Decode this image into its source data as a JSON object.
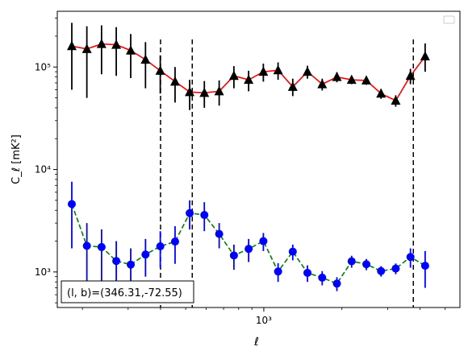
{
  "chart_data": {
    "type": "scatter",
    "title": "",
    "xlabel": "ℓ",
    "ylabel": "C_ℓ [mK²]",
    "xscale": "log",
    "yscale": "log",
    "xlim": [
      160,
      5700
    ],
    "ylim": [
      450,
      350000
    ],
    "xticks": [
      {
        "value": 1000,
        "label": "10³"
      }
    ],
    "yticks": [
      {
        "value": 1000,
        "label": "10³"
      },
      {
        "value": 10000,
        "label": "10⁴"
      },
      {
        "value": 100000,
        "label": "10⁵"
      }
    ],
    "vlines": [
      400,
      530,
      3770
    ],
    "legend": {
      "position": "upper right",
      "entries": []
    },
    "annotation": "(l, b)=(346.31,-72.55)",
    "annotation_position": "lower left",
    "series": [
      {
        "marker": "triangle",
        "marker_color": "#000000",
        "error_color": "#000000",
        "line_color": "#ff0000",
        "line_style": "solid",
        "points": [
          {
            "x": 182,
            "y": 160000,
            "lo": 60000,
            "hi": 270000
          },
          {
            "x": 208,
            "y": 150000,
            "lo": 50000,
            "hi": 250000
          },
          {
            "x": 237,
            "y": 168000,
            "lo": 85000,
            "hi": 255000
          },
          {
            "x": 270,
            "y": 165000,
            "lo": 82000,
            "hi": 245000
          },
          {
            "x": 307,
            "y": 145000,
            "lo": 78000,
            "hi": 210000
          },
          {
            "x": 350,
            "y": 118000,
            "lo": 62000,
            "hi": 175000
          },
          {
            "x": 399,
            "y": 92000,
            "lo": 55000,
            "hi": 130000
          },
          {
            "x": 455,
            "y": 72000,
            "lo": 45000,
            "hi": 100000
          },
          {
            "x": 518,
            "y": 57000,
            "lo": 38000,
            "hi": 75000
          },
          {
            "x": 590,
            "y": 56000,
            "lo": 40000,
            "hi": 73000
          },
          {
            "x": 673,
            "y": 58000,
            "lo": 42000,
            "hi": 74000
          },
          {
            "x": 767,
            "y": 82000,
            "lo": 62000,
            "hi": 102000
          },
          {
            "x": 874,
            "y": 75000,
            "lo": 58000,
            "hi": 92000
          },
          {
            "x": 996,
            "y": 90000,
            "lo": 72000,
            "hi": 108000
          },
          {
            "x": 1135,
            "y": 93000,
            "lo": 75000,
            "hi": 111000
          },
          {
            "x": 1293,
            "y": 64000,
            "lo": 52000,
            "hi": 77000
          },
          {
            "x": 1473,
            "y": 90000,
            "lo": 77000,
            "hi": 103000
          },
          {
            "x": 1679,
            "y": 68000,
            "lo": 59000,
            "hi": 77000
          },
          {
            "x": 1913,
            "y": 80000,
            "lo": 71000,
            "hi": 89000
          },
          {
            "x": 2180,
            "y": 75000,
            "lo": 68000,
            "hi": 82000
          },
          {
            "x": 2484,
            "y": 74000,
            "lo": 67000,
            "hi": 81000
          },
          {
            "x": 2830,
            "y": 55000,
            "lo": 49000,
            "hi": 61000
          },
          {
            "x": 3224,
            "y": 47000,
            "lo": 41000,
            "hi": 53000
          },
          {
            "x": 3674,
            "y": 82000,
            "lo": 68000,
            "hi": 96000
          },
          {
            "x": 4186,
            "y": 127000,
            "lo": 90000,
            "hi": 170000
          }
        ]
      },
      {
        "marker": "circle",
        "marker_color": "#0000ff",
        "error_color": "#0000ff",
        "line_color": "#008000",
        "line_style": "dashed",
        "points": [
          {
            "x": 182,
            "y": 4600,
            "lo": 1700,
            "hi": 7600
          },
          {
            "x": 208,
            "y": 1800,
            "lo": 600,
            "hi": 3000
          },
          {
            "x": 237,
            "y": 1750,
            "lo": 700,
            "hi": 2600
          },
          {
            "x": 270,
            "y": 1280,
            "lo": 600,
            "hi": 2000
          },
          {
            "x": 307,
            "y": 1180,
            "lo": 700,
            "hi": 1700
          },
          {
            "x": 350,
            "y": 1480,
            "lo": 900,
            "hi": 2100
          },
          {
            "x": 399,
            "y": 1780,
            "lo": 1100,
            "hi": 2500
          },
          {
            "x": 455,
            "y": 1980,
            "lo": 1200,
            "hi": 2800
          },
          {
            "x": 518,
            "y": 3750,
            "lo": 2600,
            "hi": 5000
          },
          {
            "x": 590,
            "y": 3600,
            "lo": 2500,
            "hi": 4800
          },
          {
            "x": 673,
            "y": 2350,
            "lo": 1700,
            "hi": 3000
          },
          {
            "x": 767,
            "y": 1450,
            "lo": 1050,
            "hi": 1850
          },
          {
            "x": 874,
            "y": 1680,
            "lo": 1250,
            "hi": 2100
          },
          {
            "x": 996,
            "y": 2000,
            "lo": 1600,
            "hi": 2400
          },
          {
            "x": 1135,
            "y": 1010,
            "lo": 800,
            "hi": 1220
          },
          {
            "x": 1293,
            "y": 1580,
            "lo": 1300,
            "hi": 1850
          },
          {
            "x": 1473,
            "y": 980,
            "lo": 800,
            "hi": 1160
          },
          {
            "x": 1679,
            "y": 880,
            "lo": 740,
            "hi": 1020
          },
          {
            "x": 1913,
            "y": 770,
            "lo": 650,
            "hi": 890
          },
          {
            "x": 2180,
            "y": 1270,
            "lo": 1100,
            "hi": 1440
          },
          {
            "x": 2484,
            "y": 1190,
            "lo": 1040,
            "hi": 1340
          },
          {
            "x": 2830,
            "y": 1020,
            "lo": 900,
            "hi": 1140
          },
          {
            "x": 3224,
            "y": 1080,
            "lo": 950,
            "hi": 1210
          },
          {
            "x": 3674,
            "y": 1400,
            "lo": 1100,
            "hi": 1700
          },
          {
            "x": 4186,
            "y": 1150,
            "lo": 700,
            "hi": 1600
          }
        ]
      }
    ]
  }
}
